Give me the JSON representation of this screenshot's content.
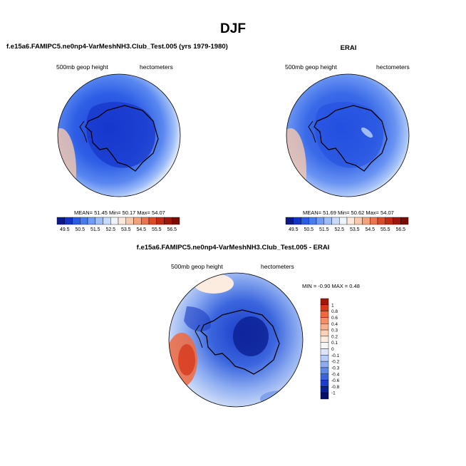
{
  "figure": {
    "title": "DJF"
  },
  "panels": [
    {
      "title": "f.e15a6.FAMIPC5.ne0np4-VarMeshNH3.Club_Test.005 (yrs 1979-1980)",
      "left_label": "500mb geop height",
      "right_label": "hectometers",
      "stats": "MEAN=  51.45  Min=  50.17  Max=  54.07"
    },
    {
      "title": "ERAI",
      "left_label": "500mb geop height",
      "right_label": "hectometers",
      "stats": "MEAN=  51.69  Min=  50.62  Max=  54.07"
    },
    {
      "title": "f.e15a6.FAMIPC5.ne0np4-VarMeshNH3.Club_Test.005 - ERAI",
      "left_label": "500mb geop height",
      "right_label": "hectometers",
      "stats": "MIN =  -0.90 MAX =   0.48"
    }
  ],
  "chart_data": [
    {
      "type": "heatmap",
      "projection": "south polar stereographic",
      "title": "f.e15a6.FAMIPC5.ne0np4-VarMeshNH3.Club_Test.005 (yrs 1979-1980)",
      "units": "hectometers",
      "mean": 51.45,
      "min": 50.17,
      "max": 54.07,
      "colorbar_labels": [
        "49.5",
        "50.5",
        "51.5",
        "52.5",
        "53.5",
        "54.5",
        "55.5",
        "56.5"
      ]
    },
    {
      "type": "heatmap",
      "projection": "south polar stereographic",
      "title": "ERAI",
      "units": "hectometers",
      "mean": 51.69,
      "min": 50.62,
      "max": 54.07,
      "colorbar_labels": [
        "49.5",
        "50.5",
        "51.5",
        "52.5",
        "53.5",
        "54.5",
        "55.5",
        "56.5"
      ]
    },
    {
      "type": "heatmap",
      "projection": "south polar stereographic",
      "title": "f.e15a6.FAMIPC5.ne0np4-VarMeshNH3.Club_Test.005 - ERAI",
      "units": "hectometers",
      "min": -0.9,
      "max": 0.48,
      "colorbar_labels": [
        "1",
        "0.8",
        "0.6",
        "0.4",
        "0.3",
        "0.2",
        "0.1",
        "0",
        "-0.1",
        "-0.2",
        "-0.3",
        "-0.4",
        "-0.6",
        "-0.8",
        "-1"
      ]
    }
  ],
  "colors": {
    "abs_scale": [
      "#0a1a8c",
      "#1433c8",
      "#2a5ae8",
      "#4a7cf0",
      "#6f9cf5",
      "#9dbcf8",
      "#c8dafb",
      "#eef3fd",
      "#fde8dc",
      "#f9c9ad",
      "#f4a27c",
      "#ec7550",
      "#dd4a2a",
      "#c42a12",
      "#a0160a",
      "#7a0c04"
    ],
    "diff_scale": [
      "#a3170b",
      "#d7391c",
      "#ef6a40",
      "#f68f67",
      "#f8b291",
      "#fad3bd",
      "#fcecdf",
      "#f5f5f5",
      "#dbe6fa",
      "#b7ccf6",
      "#8eadf1",
      "#6288ea",
      "#3b63de",
      "#1b3ec4",
      "#0b1f92",
      "#06106a"
    ]
  }
}
